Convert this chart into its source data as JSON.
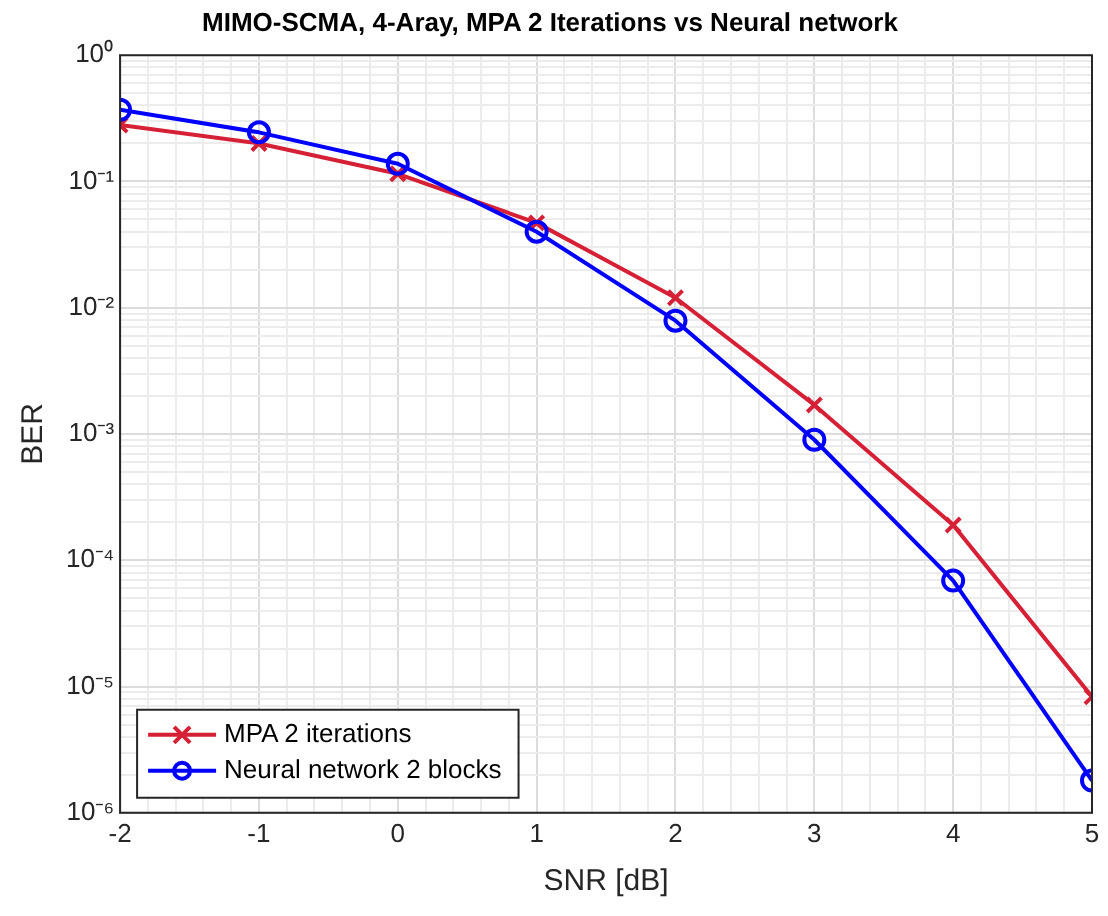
{
  "chart_data": {
    "type": "line",
    "title": "MIMO-SCMA, 4-Aray, MPA 2 Iterations vs Neural network",
    "xlabel": "SNR [dB]",
    "ylabel": "BER",
    "x": [
      -2,
      -1,
      0,
      1,
      2,
      3,
      4,
      5
    ],
    "series": [
      {
        "name": "MPA 2 iterations",
        "color": "#d62035",
        "marker": "cross",
        "values": [
          0.28,
          0.2,
          0.115,
          0.047,
          0.012,
          0.0017,
          0.00019,
          8.3e-06
        ]
      },
      {
        "name": "Neural network 2 blocks",
        "color": "#0000ff",
        "marker": "circle",
        "values": [
          0.37,
          0.245,
          0.138,
          0.04,
          0.0079,
          0.0009,
          6.9e-05,
          1.8e-06
        ]
      }
    ],
    "log": "y",
    "xlim": [
      -2,
      5
    ],
    "xticks": [
      -2,
      -1,
      0,
      1,
      2,
      3,
      4,
      5
    ],
    "ylim": [
      1e-06,
      1
    ],
    "yticks": [
      {
        "value": 1e-06,
        "label": "10⁻⁶"
      },
      {
        "value": 1e-05,
        "label": "10⁻⁵"
      },
      {
        "value": 0.0001,
        "label": "10⁻⁴"
      },
      {
        "value": 0.001,
        "label": "10⁻³"
      },
      {
        "value": 0.01,
        "label": "10⁻²"
      },
      {
        "value": 0.1,
        "label": "10⁻¹"
      },
      {
        "value": 1,
        "label": "10⁰"
      }
    ],
    "grid": true,
    "legend": "bottom left",
    "line_style": "solid"
  }
}
